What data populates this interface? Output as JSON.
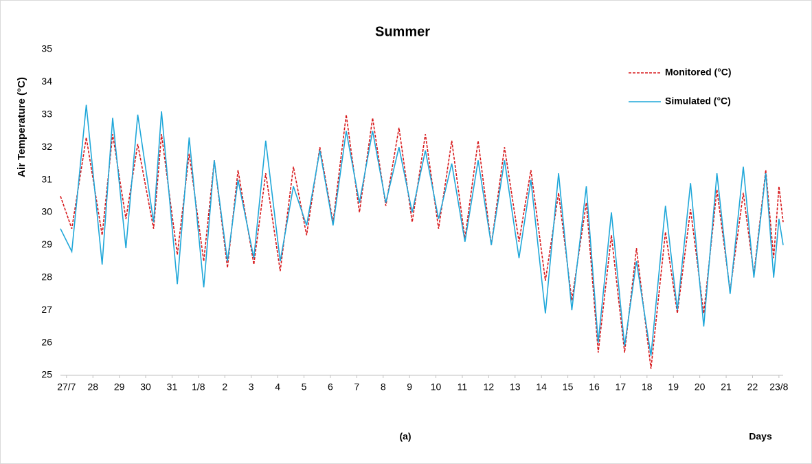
{
  "chart_data": {
    "type": "line",
    "title": "Summer",
    "ylabel": "Air Temperature (°C)",
    "xlabel": "Days",
    "annotation": "(a)",
    "x": [
      -0.23,
      0.2,
      0.75,
      1.35,
      1.75,
      2.25,
      2.7,
      3.3,
      3.6,
      4.2,
      4.65,
      5.2,
      5.6,
      6.1,
      6.5,
      7.1,
      7.55,
      8.1,
      8.6,
      9.1,
      9.6,
      10.1,
      10.6,
      11.1,
      11.6,
      12.1,
      12.6,
      13.1,
      13.6,
      14.1,
      14.6,
      15.1,
      15.6,
      16.1,
      16.6,
      17.15,
      17.6,
      18.15,
      18.65,
      19.15,
      19.7,
      20.15,
      20.65,
      21.15,
      21.6,
      22.15,
      22.7,
      23.15,
      23.65,
      24.15,
      24.65,
      25.15,
      25.65,
      26.05,
      26.5,
      26.8,
      27.0,
      27.16
    ],
    "series": [
      {
        "name": "Monitored (°C)",
        "color": "#d7191c",
        "dash": true,
        "values": [
          30.5,
          29.5,
          32.3,
          29.3,
          32.4,
          29.8,
          32.1,
          29.5,
          32.4,
          28.7,
          31.8,
          28.5,
          31.6,
          28.3,
          31.3,
          28.4,
          31.2,
          28.2,
          31.4,
          29.3,
          32.0,
          29.7,
          33.0,
          30.0,
          32.9,
          30.2,
          32.6,
          29.7,
          32.4,
          29.5,
          32.2,
          29.2,
          32.2,
          29.0,
          32.0,
          29.1,
          31.3,
          27.9,
          30.6,
          27.3,
          30.3,
          25.7,
          29.3,
          25.7,
          28.9,
          25.2,
          29.4,
          26.9,
          30.1,
          26.9,
          30.7,
          27.6,
          30.6,
          28.1,
          31.3,
          28.6,
          30.8,
          29.7
        ]
      },
      {
        "name": "Simulated (°C)",
        "color": "#1fa7d9",
        "dash": false,
        "values": [
          29.5,
          28.8,
          33.3,
          28.4,
          32.9,
          28.9,
          33.0,
          29.7,
          33.1,
          27.8,
          32.3,
          27.7,
          31.6,
          28.5,
          31.0,
          28.6,
          32.2,
          28.5,
          30.8,
          29.6,
          31.9,
          29.6,
          32.5,
          30.3,
          32.5,
          30.3,
          32.0,
          30.0,
          31.9,
          29.8,
          31.5,
          29.1,
          31.6,
          29.0,
          31.6,
          28.6,
          31.0,
          26.9,
          31.2,
          27.0,
          30.8,
          26.0,
          30.0,
          25.9,
          28.5,
          25.6,
          30.2,
          27.0,
          30.9,
          26.5,
          31.2,
          27.5,
          31.4,
          28.0,
          31.2,
          28.0,
          29.8,
          29.0
        ]
      }
    ],
    "xlim": [
      -0.23,
      27.16
    ],
    "xticks": [
      {
        "value": 0,
        "label": "27/7"
      },
      {
        "value": 1,
        "label": "28"
      },
      {
        "value": 2,
        "label": "29"
      },
      {
        "value": 3,
        "label": "30"
      },
      {
        "value": 4,
        "label": "31"
      },
      {
        "value": 5,
        "label": "1/8"
      },
      {
        "value": 6,
        "label": "2"
      },
      {
        "value": 7,
        "label": "3"
      },
      {
        "value": 8,
        "label": "4"
      },
      {
        "value": 9,
        "label": "5"
      },
      {
        "value": 10,
        "label": "6"
      },
      {
        "value": 11,
        "label": "7"
      },
      {
        "value": 12,
        "label": "8"
      },
      {
        "value": 13,
        "label": "9"
      },
      {
        "value": 14,
        "label": "10"
      },
      {
        "value": 15,
        "label": "11"
      },
      {
        "value": 16,
        "label": "12"
      },
      {
        "value": 17,
        "label": "13"
      },
      {
        "value": 18,
        "label": "14"
      },
      {
        "value": 19,
        "label": "15"
      },
      {
        "value": 20,
        "label": "16"
      },
      {
        "value": 21,
        "label": "17"
      },
      {
        "value": 22,
        "label": "18"
      },
      {
        "value": 23,
        "label": "19"
      },
      {
        "value": 24,
        "label": "20"
      },
      {
        "value": 25,
        "label": "21"
      },
      {
        "value": 26,
        "label": "22"
      },
      {
        "value": 27,
        "label": "23/8"
      }
    ],
    "ylim": [
      25,
      35
    ],
    "yticks": [
      25,
      26,
      27,
      28,
      29,
      30,
      31,
      32,
      33,
      34,
      35
    ],
    "legend": "upper right"
  }
}
